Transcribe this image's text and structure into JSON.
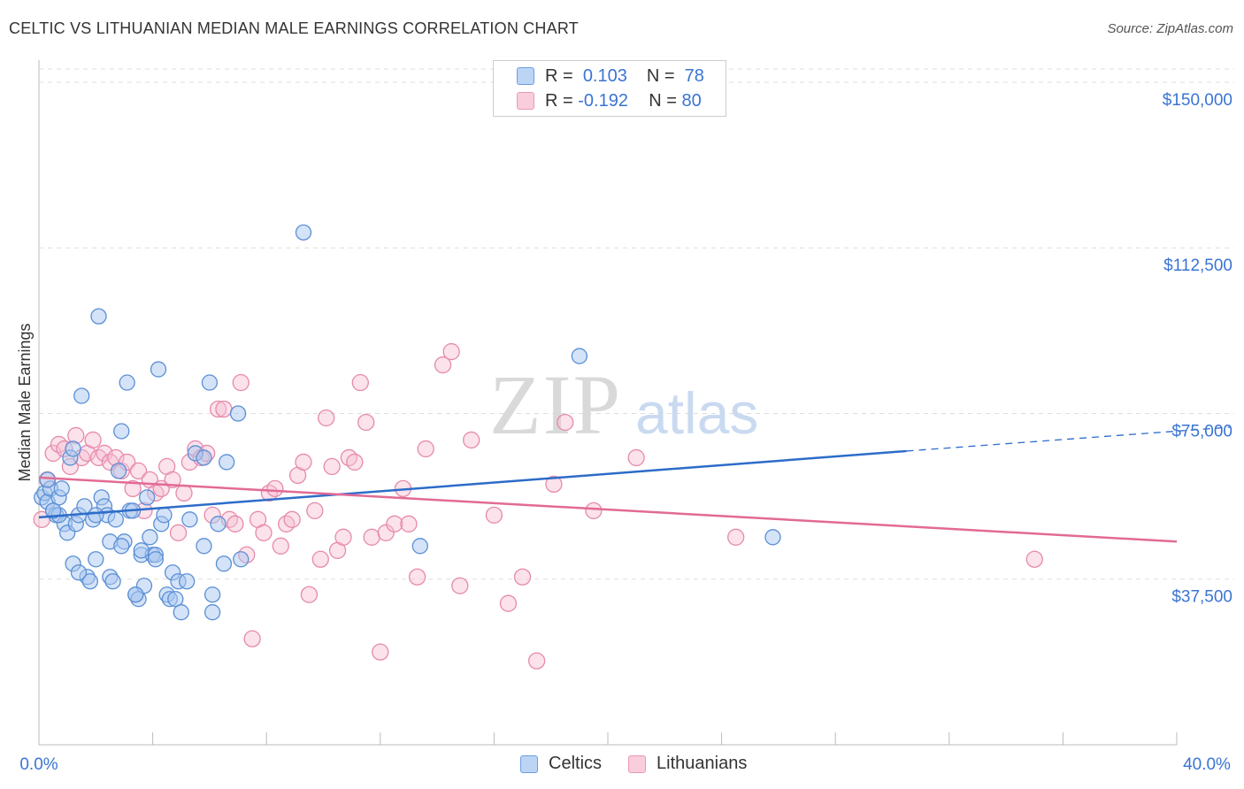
{
  "title": "CELTIC VS LITHUANIAN MEDIAN MALE EARNINGS CORRELATION CHART",
  "source": "Source: ZipAtlas.com",
  "watermark": {
    "zip": "ZIP",
    "atlas": "atlas"
  },
  "legend": {
    "r_label": "R =",
    "n_label": "N =",
    "rows": [
      {
        "r": "0.103",
        "n": "78"
      },
      {
        "r": "-0.192",
        "n": "80"
      }
    ]
  },
  "colors": {
    "celtics_fill": "#a9c8f0",
    "celtics_stroke": "#5b8fd6",
    "celtics_line": "#2d6cc9",
    "lith_fill": "#f7bfd2",
    "lith_stroke": "#e68aab",
    "lith_line": "#e26a95",
    "tick_label": "#3a74d4",
    "grid": "#dddddd"
  },
  "chart_data": {
    "type": "scatter",
    "title": "CELTIC VS LITHUANIAN MEDIAN MALE EARNINGS CORRELATION CHART",
    "xlabel": "",
    "ylabel": "Median Male Earnings",
    "xlim": [
      0,
      40
    ],
    "ylim": [
      0,
      150000
    ],
    "x_tick_labels": [
      "0.0%",
      "40.0%"
    ],
    "y_ticks": [
      37500,
      75000,
      112500,
      150000
    ],
    "y_tick_labels": [
      "$37,500",
      "$75,000",
      "$112,500",
      "$150,000"
    ],
    "grid": true,
    "legend_position": "top-center",
    "series": [
      {
        "name": "Celtics",
        "r": 0.103,
        "n": 78,
        "trend": {
          "x0": 0,
          "y0": 51500,
          "x1": 30.5,
          "y1": 66500,
          "dashed_to_x": 40,
          "dashed_to_y": 71500
        },
        "points": [
          [
            0.1,
            56000
          ],
          [
            0.2,
            57000
          ],
          [
            0.3,
            55000
          ],
          [
            0.4,
            58000
          ],
          [
            0.5,
            53000
          ],
          [
            0.6,
            52000
          ],
          [
            0.7,
            56000
          ],
          [
            0.8,
            58000
          ],
          [
            0.9,
            50000
          ],
          [
            1.0,
            48000
          ],
          [
            1.1,
            65000
          ],
          [
            1.2,
            67000
          ],
          [
            1.3,
            50000
          ],
          [
            1.4,
            52000
          ],
          [
            1.5,
            79000
          ],
          [
            1.6,
            54000
          ],
          [
            1.7,
            38000
          ],
          [
            1.8,
            37000
          ],
          [
            1.9,
            51000
          ],
          [
            2.0,
            42000
          ],
          [
            2.1,
            97000
          ],
          [
            2.2,
            56000
          ],
          [
            2.3,
            54000
          ],
          [
            2.4,
            52000
          ],
          [
            2.5,
            38000
          ],
          [
            2.6,
            37000
          ],
          [
            2.7,
            51000
          ],
          [
            2.8,
            62000
          ],
          [
            2.9,
            71000
          ],
          [
            3.0,
            46000
          ],
          [
            3.1,
            82000
          ],
          [
            3.2,
            53000
          ],
          [
            3.3,
            53000
          ],
          [
            3.4,
            34000
          ],
          [
            3.5,
            33000
          ],
          [
            3.6,
            43000
          ],
          [
            3.7,
            36000
          ],
          [
            3.8,
            56000
          ],
          [
            3.9,
            47000
          ],
          [
            4.0,
            43000
          ],
          [
            4.1,
            43000
          ],
          [
            4.2,
            85000
          ],
          [
            4.3,
            50000
          ],
          [
            4.4,
            52000
          ],
          [
            4.5,
            34000
          ],
          [
            4.6,
            33000
          ],
          [
            4.7,
            39000
          ],
          [
            4.8,
            33000
          ],
          [
            4.9,
            37000
          ],
          [
            5.0,
            30000
          ],
          [
            5.2,
            37000
          ],
          [
            5.3,
            51000
          ],
          [
            5.5,
            66000
          ],
          [
            5.8,
            45000
          ],
          [
            6.0,
            82000
          ],
          [
            6.1,
            30000
          ],
          [
            6.3,
            50000
          ],
          [
            6.5,
            41000
          ],
          [
            6.6,
            64000
          ],
          [
            7.0,
            75000
          ],
          [
            7.1,
            42000
          ],
          [
            9.3,
            116000
          ],
          [
            13.4,
            45000
          ],
          [
            19.0,
            88000
          ],
          [
            25.8,
            47000
          ],
          [
            0.3,
            60000
          ],
          [
            0.7,
            52000
          ],
          [
            1.2,
            41000
          ],
          [
            2.5,
            46000
          ],
          [
            3.4,
            34000
          ],
          [
            4.1,
            42000
          ],
          [
            5.8,
            65000
          ],
          [
            0.5,
            53000
          ],
          [
            1.4,
            39000
          ],
          [
            2.0,
            52000
          ],
          [
            2.9,
            45000
          ],
          [
            3.6,
            44000
          ],
          [
            6.1,
            34000
          ]
        ]
      },
      {
        "name": "Lithuanians",
        "r": -0.192,
        "n": 80,
        "trend": {
          "x0": 0,
          "y0": 60500,
          "x1": 40,
          "y1": 46000
        },
        "points": [
          [
            0.1,
            51000
          ],
          [
            0.3,
            60000
          ],
          [
            0.5,
            66000
          ],
          [
            0.7,
            68000
          ],
          [
            0.9,
            67000
          ],
          [
            1.1,
            63000
          ],
          [
            1.3,
            70000
          ],
          [
            1.5,
            65000
          ],
          [
            1.7,
            66000
          ],
          [
            1.9,
            69000
          ],
          [
            2.1,
            65000
          ],
          [
            2.3,
            66000
          ],
          [
            2.5,
            64000
          ],
          [
            2.7,
            65000
          ],
          [
            2.9,
            62000
          ],
          [
            3.1,
            64000
          ],
          [
            3.3,
            58000
          ],
          [
            3.5,
            62000
          ],
          [
            3.7,
            53000
          ],
          [
            3.9,
            60000
          ],
          [
            4.1,
            57000
          ],
          [
            4.3,
            58000
          ],
          [
            4.5,
            63000
          ],
          [
            4.7,
            60000
          ],
          [
            4.9,
            48000
          ],
          [
            5.1,
            57000
          ],
          [
            5.3,
            64000
          ],
          [
            5.5,
            67000
          ],
          [
            5.7,
            65000
          ],
          [
            5.9,
            66000
          ],
          [
            6.1,
            52000
          ],
          [
            6.3,
            76000
          ],
          [
            6.5,
            76000
          ],
          [
            6.7,
            51000
          ],
          [
            6.9,
            50000
          ],
          [
            7.1,
            82000
          ],
          [
            7.3,
            43000
          ],
          [
            7.5,
            24000
          ],
          [
            7.7,
            51000
          ],
          [
            7.9,
            48000
          ],
          [
            8.1,
            57000
          ],
          [
            8.3,
            58000
          ],
          [
            8.5,
            45000
          ],
          [
            8.7,
            50000
          ],
          [
            8.9,
            51000
          ],
          [
            9.1,
            61000
          ],
          [
            9.3,
            64000
          ],
          [
            9.5,
            34000
          ],
          [
            9.7,
            53000
          ],
          [
            9.9,
            42000
          ],
          [
            10.1,
            74000
          ],
          [
            10.3,
            63000
          ],
          [
            10.5,
            44000
          ],
          [
            10.7,
            47000
          ],
          [
            10.9,
            65000
          ],
          [
            11.1,
            64000
          ],
          [
            11.3,
            82000
          ],
          [
            11.5,
            73000
          ],
          [
            11.7,
            47000
          ],
          [
            12.0,
            21000
          ],
          [
            12.2,
            48000
          ],
          [
            12.5,
            50000
          ],
          [
            12.8,
            58000
          ],
          [
            13.0,
            50000
          ],
          [
            13.3,
            38000
          ],
          [
            13.6,
            67000
          ],
          [
            14.2,
            86000
          ],
          [
            14.5,
            89000
          ],
          [
            14.8,
            36000
          ],
          [
            15.2,
            69000
          ],
          [
            16.0,
            52000
          ],
          [
            16.5,
            32000
          ],
          [
            17.0,
            38000
          ],
          [
            17.5,
            19000
          ],
          [
            18.1,
            59000
          ],
          [
            18.5,
            73000
          ],
          [
            19.5,
            53000
          ],
          [
            21.0,
            65000
          ],
          [
            24.5,
            47000
          ],
          [
            35.0,
            42000
          ]
        ]
      }
    ]
  }
}
